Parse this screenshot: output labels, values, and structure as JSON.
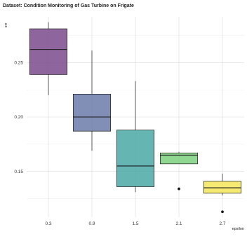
{
  "chart_data": {
    "type": "boxplot",
    "title": "Dataset: Condition Monitoring of Gas Turbine on Frigate",
    "xlabel": "epsilon",
    "ylabel": "err",
    "categories": [
      "0.3",
      "0.9",
      "1.5",
      "2.1",
      "2.7"
    ],
    "y_ticks": [
      "0.15",
      "0.20",
      "0.25"
    ],
    "ylim": [
      0.108,
      0.292
    ],
    "grid": true,
    "legend": "none",
    "boxes": [
      {
        "x": "0.3",
        "whisker_low": 0.22,
        "q1": 0.239,
        "median": 0.262,
        "q3": 0.281,
        "whisker_high": 0.287,
        "outliers": [],
        "color": "#7b4a8c"
      },
      {
        "x": "0.9",
        "whisker_low": 0.169,
        "q1": 0.187,
        "median": 0.2,
        "q3": 0.221,
        "whisker_high": 0.261,
        "outliers": [],
        "color": "#6b7aa8"
      },
      {
        "x": "1.5",
        "whisker_low": 0.131,
        "q1": 0.136,
        "median": 0.155,
        "q3": 0.188,
        "whisker_high": 0.233,
        "outliers": [],
        "color": "#4aa8a6"
      },
      {
        "x": "2.1",
        "whisker_low": 0.157,
        "q1": 0.157,
        "median": 0.165,
        "q3": 0.167,
        "whisker_high": 0.168,
        "outliers": [
          0.134
        ],
        "color": "#7dd17e"
      },
      {
        "x": "2.7",
        "whisker_low": 0.128,
        "q1": 0.13,
        "median": 0.135,
        "q3": 0.141,
        "whisker_high": 0.148,
        "outliers": [
          0.113
        ],
        "color": "#f5e65a"
      }
    ]
  }
}
